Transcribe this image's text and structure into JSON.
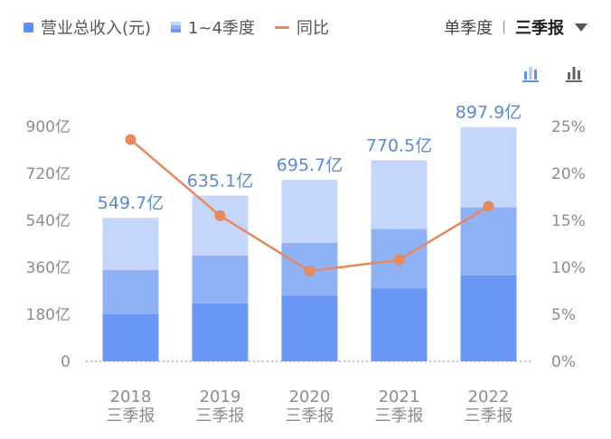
{
  "legend": {
    "revenue": "营业总收入(元)",
    "quarters": "1~4季度",
    "yoy": "同比"
  },
  "period": {
    "option_quarter": "单季度",
    "option_report": "三季报"
  },
  "icons": [
    "bar-stack-icon",
    "bar-chart-icon"
  ],
  "colors": {
    "q1": "#6a97f3",
    "q2": "#8fb1f6",
    "q3": "#c4d6fb",
    "line": "#e8895c",
    "label": "#5b8ad6",
    "axis_text": "#8c8c8c"
  },
  "chart_data": {
    "type": "bar",
    "categories": [
      "2018",
      "2019",
      "2020",
      "2021",
      "2022"
    ],
    "category_sublabel": "三季报",
    "series": [
      {
        "name": "1~4季度",
        "quarter": "Q1",
        "values": [
          181,
          222,
          252,
          280,
          330
        ]
      },
      {
        "name": "1~4季度",
        "quarter": "Q2",
        "values": [
          169,
          183,
          202,
          227,
          260
        ]
      },
      {
        "name": "1~4季度",
        "quarter": "Q3",
        "values": [
          199.7,
          230.1,
          241.7,
          263.5,
          307.9
        ]
      }
    ],
    "totals": [
      549.7,
      635.1,
      695.7,
      770.5,
      897.9
    ],
    "total_labels": [
      "549.7亿",
      "635.1亿",
      "695.7亿",
      "770.5亿",
      "897.9亿"
    ],
    "yoy": {
      "name": "同比",
      "values": [
        23.6,
        15.5,
        9.6,
        10.8,
        16.5
      ]
    },
    "left_axis": {
      "range": [
        0,
        900
      ],
      "ticks": [
        "0",
        "180亿",
        "360亿",
        "540亿",
        "720亿",
        "900亿"
      ]
    },
    "right_axis": {
      "range": [
        0,
        25
      ],
      "ticks": [
        "0%",
        "5%",
        "10%",
        "15%",
        "20%",
        "25%"
      ]
    }
  }
}
